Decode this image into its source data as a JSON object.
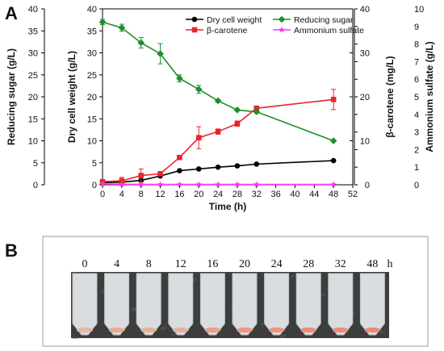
{
  "panel_a_label": "A",
  "panel_b_label": "B",
  "chart_data": {
    "type": "line",
    "title": "",
    "xlabel": "Time (h)",
    "xlim": [
      0,
      52
    ],
    "xticks": [
      0,
      4,
      8,
      12,
      16,
      20,
      24,
      28,
      32,
      36,
      40,
      44,
      48,
      52
    ],
    "axes": {
      "reducing_sugar": {
        "label": "Reducing sugar (g/L)",
        "lim": [
          0,
          40
        ],
        "ticks": [
          0,
          5,
          10,
          15,
          20,
          25,
          30,
          35,
          40
        ]
      },
      "dry_cell_weight": {
        "label": "Dry cell weight (g/L)",
        "lim": [
          0,
          40
        ],
        "ticks": [
          0,
          5,
          10,
          15,
          20,
          25,
          30,
          35,
          40
        ]
      },
      "beta_carotene": {
        "label": "β-carotene (mg/L)",
        "lim": [
          0,
          40
        ],
        "ticks": [
          0,
          10,
          20,
          30,
          40
        ]
      },
      "ammonium_sulfate": {
        "label": "Ammonium sulfate (g/L)",
        "lim": [
          0,
          10
        ],
        "ticks": [
          0,
          1,
          2,
          3,
          4,
          5,
          6,
          7,
          8,
          9,
          10
        ]
      }
    },
    "legend_position": "top-right",
    "series": [
      {
        "name": "Dry cell weight",
        "axis": "dry_cell_weight",
        "color": "#000000",
        "marker": "circle",
        "x": [
          0,
          4,
          8,
          12,
          16,
          20,
          24,
          28,
          32,
          48
        ],
        "y": [
          0.5,
          0.6,
          1.0,
          2.0,
          3.2,
          3.6,
          4.0,
          4.3,
          4.7,
          5.5
        ],
        "err": [
          0,
          0,
          0,
          0,
          0,
          0,
          0,
          0,
          0,
          0
        ]
      },
      {
        "name": "β-carotene",
        "axis": "beta_carotene",
        "color": "#e8252a",
        "marker": "square",
        "x": [
          0,
          4,
          8,
          12,
          16,
          20,
          24,
          28,
          32,
          48
        ],
        "y": [
          0.7,
          0.9,
          2.1,
          2.5,
          6.2,
          10.7,
          12.1,
          13.9,
          17.4,
          19.4
        ],
        "err": [
          0.3,
          0.8,
          1.5,
          0.3,
          0.4,
          2.5,
          0.6,
          0.6,
          0.5,
          2.3
        ]
      },
      {
        "name": "Reducing sugar",
        "axis": "reducing_sugar",
        "color": "#1f8f2b",
        "marker": "diamond",
        "x": [
          0,
          4,
          8,
          12,
          16,
          20,
          24,
          28,
          32,
          48
        ],
        "y": [
          37.0,
          35.7,
          32.3,
          29.8,
          24.2,
          21.7,
          19.1,
          17.0,
          16.6,
          10.0
        ],
        "err": [
          0.6,
          0.8,
          1.2,
          2.3,
          0.8,
          0.9,
          0.3,
          0.2,
          0.3,
          0.2
        ]
      },
      {
        "name": "Ammonium sulfate",
        "axis": "ammonium_sulfate",
        "color": "#ff33ff",
        "marker": "star",
        "x": [
          0,
          4,
          8,
          12,
          16,
          20,
          24,
          28,
          32,
          48
        ],
        "y": [
          0.05,
          0.03,
          0.02,
          0.02,
          0.02,
          0.02,
          0.02,
          0.02,
          0.02,
          0.02
        ],
        "err": [
          0,
          0,
          0,
          0,
          0,
          0,
          0,
          0,
          0,
          0
        ]
      }
    ]
  },
  "photo": {
    "time_labels": [
      "0",
      "4",
      "8",
      "12",
      "16",
      "20",
      "24",
      "28",
      "32",
      "48"
    ],
    "unit": "h",
    "pellet_colors": [
      "#e6b9a0",
      "#e9a98c",
      "#e8b096",
      "#eab29b",
      "#ee9f87",
      "#f19682",
      "#f0937c",
      "#f28978",
      "#f18a7a",
      "#f08676"
    ]
  }
}
